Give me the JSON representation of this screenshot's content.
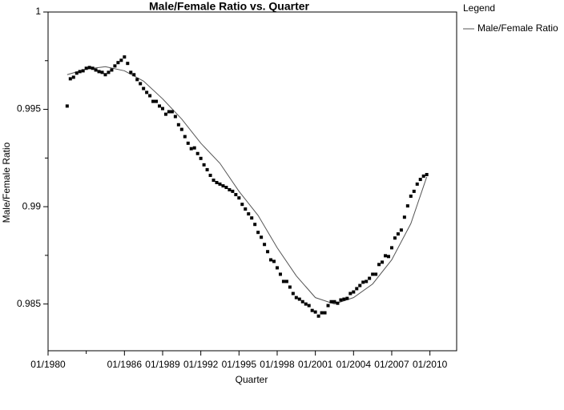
{
  "chart_data": {
    "type": "scatter",
    "title": "Male/Female Ratio vs. Quarter",
    "xlabel": "Quarter",
    "ylabel": "Male/Female Ratio",
    "legend_title": "Legend",
    "xlim": [
      1980,
      2012.1
    ],
    "ylim": [
      0.9826,
      1
    ],
    "xticks": [
      {
        "value": 1980,
        "label": "01/1980"
      },
      {
        "value": 1986,
        "label": "01/1986"
      },
      {
        "value": 1989,
        "label": "01/1989"
      },
      {
        "value": 1992,
        "label": "01/1992"
      },
      {
        "value": 1995,
        "label": "01/1995"
      },
      {
        "value": 1998,
        "label": "01/1998"
      },
      {
        "value": 2001,
        "label": "01/2001"
      },
      {
        "value": 2004,
        "label": "01/2004"
      },
      {
        "value": 2007,
        "label": "01/2007"
      },
      {
        "value": 2010,
        "label": "01/2010"
      }
    ],
    "xminorticks": [
      1983
    ],
    "yticks": [
      0.985,
      0.99,
      0.995,
      1
    ],
    "yminorticks": [
      0.9875,
      0.9925,
      0.9975
    ],
    "color": "#000000",
    "x": [
      1981.5,
      1981.75,
      1982,
      1982.25,
      1982.5,
      1982.75,
      1983,
      1983.25,
      1983.5,
      1983.75,
      1984,
      1984.25,
      1984.5,
      1984.75,
      1985,
      1985.25,
      1985.5,
      1985.75,
      1986,
      1986.25,
      1986.5,
      1986.75,
      1987,
      1987.25,
      1987.5,
      1987.75,
      1988,
      1988.25,
      1988.5,
      1988.75,
      1989,
      1989.25,
      1989.5,
      1989.75,
      1990,
      1990.25,
      1990.5,
      1990.75,
      1991,
      1991.25,
      1991.5,
      1991.75,
      1992,
      1992.25,
      1992.5,
      1992.75,
      1993,
      1993.25,
      1993.5,
      1993.75,
      1994,
      1994.25,
      1994.5,
      1994.75,
      1995,
      1995.25,
      1995.5,
      1995.75,
      1996,
      1996.25,
      1996.5,
      1996.75,
      1997,
      1997.25,
      1997.5,
      1997.75,
      1998,
      1998.25,
      1998.5,
      1998.75,
      1999,
      1999.25,
      1999.5,
      1999.75,
      2000,
      2000.25,
      2000.5,
      2000.75,
      2001,
      2001.25,
      2001.5,
      2001.75,
      2002,
      2002.25,
      2002.5,
      2002.75,
      2003,
      2003.25,
      2003.5,
      2003.75,
      2004,
      2004.25,
      2004.5,
      2004.75,
      2005,
      2005.25,
      2005.5,
      2005.75,
      2006,
      2006.25,
      2006.5,
      2006.75,
      2007,
      2007.25,
      2007.5,
      2007.75,
      2008,
      2008.25,
      2008.5,
      2008.75,
      2009,
      2009.25,
      2009.5,
      2009.75
    ],
    "values": [
      0.99517,
      0.99657,
      0.99665,
      0.99686,
      0.99694,
      0.99698,
      0.99711,
      0.99715,
      0.99711,
      0.99702,
      0.99694,
      0.9969,
      0.99678,
      0.9969,
      0.99702,
      0.99723,
      0.9974,
      0.99752,
      0.99769,
      0.99736,
      0.9969,
      0.99678,
      0.99653,
      0.99632,
      0.99607,
      0.99587,
      0.9957,
      0.99541,
      0.99541,
      0.99517,
      0.99504,
      0.99475,
      0.99488,
      0.99488,
      0.99463,
      0.99421,
      0.99397,
      0.9936,
      0.99326,
      0.99298,
      0.99302,
      0.99273,
      0.99248,
      0.99215,
      0.9919,
      0.99161,
      0.99136,
      0.99124,
      0.99116,
      0.99107,
      0.99099,
      0.99087,
      0.99079,
      0.99062,
      0.99045,
      0.99012,
      0.98988,
      0.98963,
      0.98942,
      0.98909,
      0.98868,
      0.98843,
      0.98806,
      0.98769,
      0.98727,
      0.98719,
      0.98686,
      0.98653,
      0.98616,
      0.98616,
      0.98587,
      0.98554,
      0.98533,
      0.98525,
      0.98512,
      0.985,
      0.98492,
      0.98467,
      0.98459,
      0.98438,
      0.98455,
      0.98455,
      0.98492,
      0.98512,
      0.98512,
      0.98504,
      0.98521,
      0.98525,
      0.98529,
      0.98554,
      0.98562,
      0.98579,
      0.98595,
      0.98612,
      0.98616,
      0.98632,
      0.98653,
      0.98653,
      0.98703,
      0.98715,
      0.98748,
      0.98744,
      0.98789,
      0.98839,
      0.9886,
      0.9888,
      0.98946,
      0.99004,
      0.99054,
      0.99079,
      0.99116,
      0.9914,
      0.99157,
      0.99165
    ],
    "fit": {
      "name": "Male/Female Ratio",
      "color": "#555555",
      "x": [
        1981.5,
        1983,
        1984.5,
        1986,
        1987.5,
        1989,
        1990.5,
        1992,
        1993.5,
        1995,
        1996.5,
        1998,
        1999.5,
        2001,
        2002.5,
        2004,
        2005.5,
        2007,
        2008.5,
        2009.75
      ],
      "values": [
        0.99678,
        0.99707,
        0.99719,
        0.99698,
        0.99645,
        0.99554,
        0.9945,
        0.99326,
        0.99223,
        0.99079,
        0.98955,
        0.98789,
        0.98645,
        0.98533,
        0.985,
        0.98533,
        0.98603,
        0.98727,
        0.98913,
        0.99153
      ]
    }
  }
}
